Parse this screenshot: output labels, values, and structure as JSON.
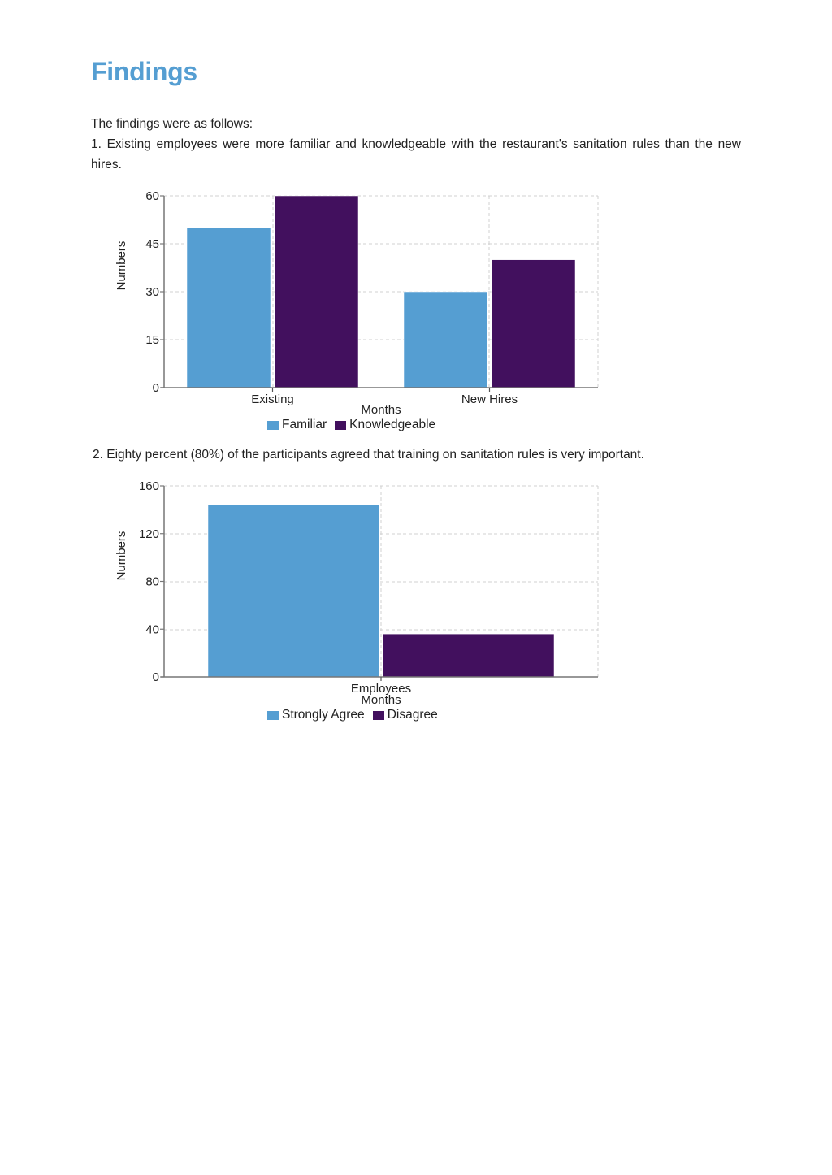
{
  "document": {
    "title": "Findings",
    "intro": "The findings were as follows:",
    "finding_1": "1. Existing employees were more familiar and knowledgeable with the restaurant's sanitation rules than the new hires.",
    "finding_2": "2. Eighty percent (80%) of the participants agreed that training on sanitation rules is very important."
  },
  "colors": {
    "title": "#559ed2",
    "series_blue": "#559ed2",
    "series_purple": "#42105e",
    "grid": "#d0d0d0",
    "axis": "#777777"
  },
  "chart_data": [
    {
      "type": "bar",
      "title": "",
      "categories": [
        "Existing",
        "New Hires"
      ],
      "series": [
        {
          "name": "Familiar",
          "values": [
            50,
            30
          ],
          "color": "#559ed2"
        },
        {
          "name": "Knowledgeable",
          "values": [
            60,
            40
          ],
          "color": "#42105e"
        }
      ],
      "xlabel": "Months",
      "ylabel": "Numbers",
      "ylim": [
        0,
        60
      ],
      "yticks": [
        "0",
        "15",
        "30",
        "45",
        "60"
      ],
      "grid": true,
      "legend_position": "bottom"
    },
    {
      "type": "bar",
      "title": "",
      "categories": [
        "Employees"
      ],
      "series": [
        {
          "name": "Strongly Agree",
          "values": [
            144
          ],
          "color": "#559ed2"
        },
        {
          "name": "Disagree",
          "values": [
            36
          ],
          "color": "#42105e"
        }
      ],
      "xlabel": "Months",
      "ylabel": "Numbers",
      "ylim": [
        0,
        160
      ],
      "yticks": [
        "0",
        "40",
        "80",
        "120",
        "160"
      ],
      "grid": true,
      "legend_position": "bottom"
    }
  ]
}
